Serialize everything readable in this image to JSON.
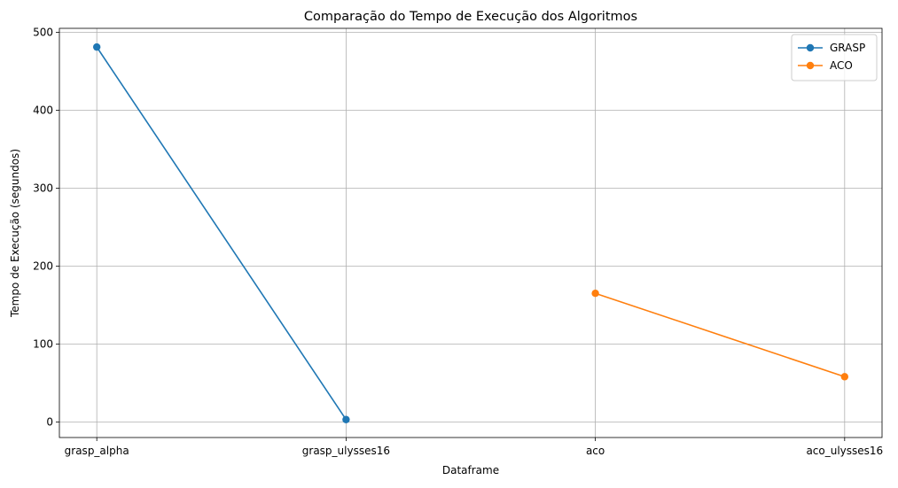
{
  "chart_data": {
    "type": "line",
    "title": "Comparação do Tempo de Execução dos Algoritmos",
    "xlabel": "Dataframe",
    "ylabel": "Tempo de Execução (segundos)",
    "categories": [
      "grasp_alpha",
      "grasp_ulysses16",
      "aco",
      "aco_ulysses16"
    ],
    "ylim": [
      -20,
      505
    ],
    "yticks": [
      0,
      100,
      200,
      300,
      400,
      500
    ],
    "grid": true,
    "legend_position": "top-right",
    "series": [
      {
        "name": "GRASP",
        "color": "#1f77b4",
        "x": [
          "grasp_alpha",
          "grasp_ulysses16"
        ],
        "values": [
          481,
          3
        ]
      },
      {
        "name": "ACO",
        "color": "#ff7f0e",
        "x": [
          "aco",
          "aco_ulysses16"
        ],
        "values": [
          165,
          58
        ]
      }
    ]
  }
}
